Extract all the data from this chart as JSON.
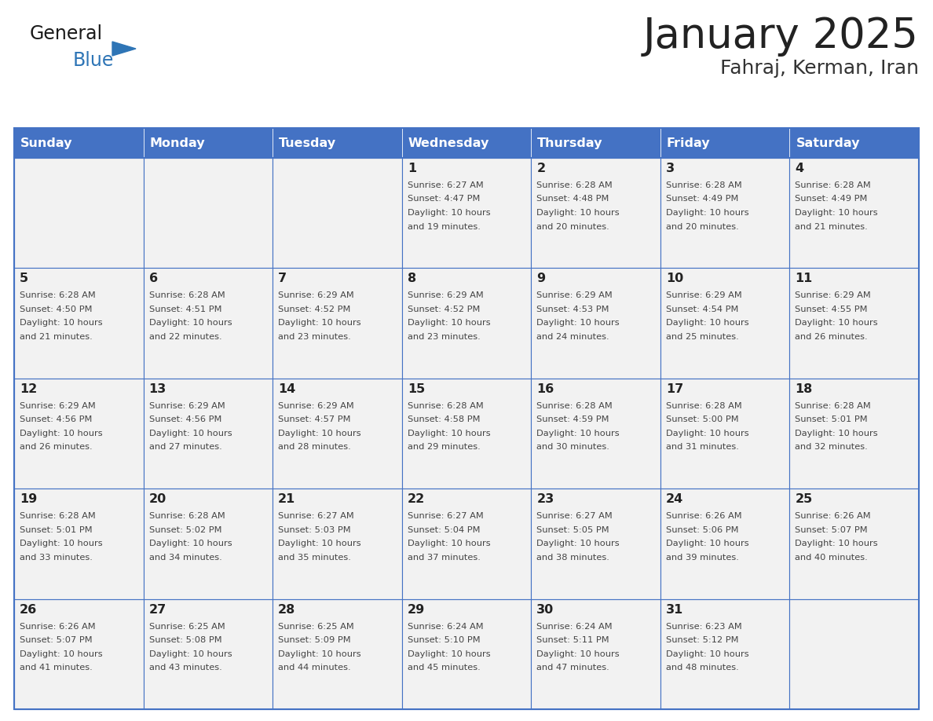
{
  "title": "January 2025",
  "subtitle": "Fahraj, Kerman, Iran",
  "header_bg": "#4472C4",
  "header_text_color": "#FFFFFF",
  "cell_bg": "#F2F2F2",
  "border_color": "#4472C4",
  "border_color_light": "#AAAAAA",
  "days_of_week": [
    "Sunday",
    "Monday",
    "Tuesday",
    "Wednesday",
    "Thursday",
    "Friday",
    "Saturday"
  ],
  "title_color": "#222222",
  "subtitle_color": "#333333",
  "day_num_color": "#222222",
  "cell_text_color": "#444444",
  "logo_general_color": "#1a1a1a",
  "logo_blue_color": "#2E75B6",
  "fig_width": 11.88,
  "fig_height": 9.18,
  "dpi": 100,
  "calendar": [
    [
      {
        "day": null,
        "sunrise": null,
        "sunset": null,
        "daylight": null
      },
      {
        "day": null,
        "sunrise": null,
        "sunset": null,
        "daylight": null
      },
      {
        "day": null,
        "sunrise": null,
        "sunset": null,
        "daylight": null
      },
      {
        "day": 1,
        "sunrise": "6:27 AM",
        "sunset": "4:47 PM",
        "daylight": "10 hours and 19 minutes."
      },
      {
        "day": 2,
        "sunrise": "6:28 AM",
        "sunset": "4:48 PM",
        "daylight": "10 hours and 20 minutes."
      },
      {
        "day": 3,
        "sunrise": "6:28 AM",
        "sunset": "4:49 PM",
        "daylight": "10 hours and 20 minutes."
      },
      {
        "day": 4,
        "sunrise": "6:28 AM",
        "sunset": "4:49 PM",
        "daylight": "10 hours and 21 minutes."
      }
    ],
    [
      {
        "day": 5,
        "sunrise": "6:28 AM",
        "sunset": "4:50 PM",
        "daylight": "10 hours and 21 minutes."
      },
      {
        "day": 6,
        "sunrise": "6:28 AM",
        "sunset": "4:51 PM",
        "daylight": "10 hours and 22 minutes."
      },
      {
        "day": 7,
        "sunrise": "6:29 AM",
        "sunset": "4:52 PM",
        "daylight": "10 hours and 23 minutes."
      },
      {
        "day": 8,
        "sunrise": "6:29 AM",
        "sunset": "4:52 PM",
        "daylight": "10 hours and 23 minutes."
      },
      {
        "day": 9,
        "sunrise": "6:29 AM",
        "sunset": "4:53 PM",
        "daylight": "10 hours and 24 minutes."
      },
      {
        "day": 10,
        "sunrise": "6:29 AM",
        "sunset": "4:54 PM",
        "daylight": "10 hours and 25 minutes."
      },
      {
        "day": 11,
        "sunrise": "6:29 AM",
        "sunset": "4:55 PM",
        "daylight": "10 hours and 26 minutes."
      }
    ],
    [
      {
        "day": 12,
        "sunrise": "6:29 AM",
        "sunset": "4:56 PM",
        "daylight": "10 hours and 26 minutes."
      },
      {
        "day": 13,
        "sunrise": "6:29 AM",
        "sunset": "4:56 PM",
        "daylight": "10 hours and 27 minutes."
      },
      {
        "day": 14,
        "sunrise": "6:29 AM",
        "sunset": "4:57 PM",
        "daylight": "10 hours and 28 minutes."
      },
      {
        "day": 15,
        "sunrise": "6:28 AM",
        "sunset": "4:58 PM",
        "daylight": "10 hours and 29 minutes."
      },
      {
        "day": 16,
        "sunrise": "6:28 AM",
        "sunset": "4:59 PM",
        "daylight": "10 hours and 30 minutes."
      },
      {
        "day": 17,
        "sunrise": "6:28 AM",
        "sunset": "5:00 PM",
        "daylight": "10 hours and 31 minutes."
      },
      {
        "day": 18,
        "sunrise": "6:28 AM",
        "sunset": "5:01 PM",
        "daylight": "10 hours and 32 minutes."
      }
    ],
    [
      {
        "day": 19,
        "sunrise": "6:28 AM",
        "sunset": "5:01 PM",
        "daylight": "10 hours and 33 minutes."
      },
      {
        "day": 20,
        "sunrise": "6:28 AM",
        "sunset": "5:02 PM",
        "daylight": "10 hours and 34 minutes."
      },
      {
        "day": 21,
        "sunrise": "6:27 AM",
        "sunset": "5:03 PM",
        "daylight": "10 hours and 35 minutes."
      },
      {
        "day": 22,
        "sunrise": "6:27 AM",
        "sunset": "5:04 PM",
        "daylight": "10 hours and 37 minutes."
      },
      {
        "day": 23,
        "sunrise": "6:27 AM",
        "sunset": "5:05 PM",
        "daylight": "10 hours and 38 minutes."
      },
      {
        "day": 24,
        "sunrise": "6:26 AM",
        "sunset": "5:06 PM",
        "daylight": "10 hours and 39 minutes."
      },
      {
        "day": 25,
        "sunrise": "6:26 AM",
        "sunset": "5:07 PM",
        "daylight": "10 hours and 40 minutes."
      }
    ],
    [
      {
        "day": 26,
        "sunrise": "6:26 AM",
        "sunset": "5:07 PM",
        "daylight": "10 hours and 41 minutes."
      },
      {
        "day": 27,
        "sunrise": "6:25 AM",
        "sunset": "5:08 PM",
        "daylight": "10 hours and 43 minutes."
      },
      {
        "day": 28,
        "sunrise": "6:25 AM",
        "sunset": "5:09 PM",
        "daylight": "10 hours and 44 minutes."
      },
      {
        "day": 29,
        "sunrise": "6:24 AM",
        "sunset": "5:10 PM",
        "daylight": "10 hours and 45 minutes."
      },
      {
        "day": 30,
        "sunrise": "6:24 AM",
        "sunset": "5:11 PM",
        "daylight": "10 hours and 47 minutes."
      },
      {
        "day": 31,
        "sunrise": "6:23 AM",
        "sunset": "5:12 PM",
        "daylight": "10 hours and 48 minutes."
      },
      {
        "day": null,
        "sunrise": null,
        "sunset": null,
        "daylight": null
      }
    ]
  ]
}
